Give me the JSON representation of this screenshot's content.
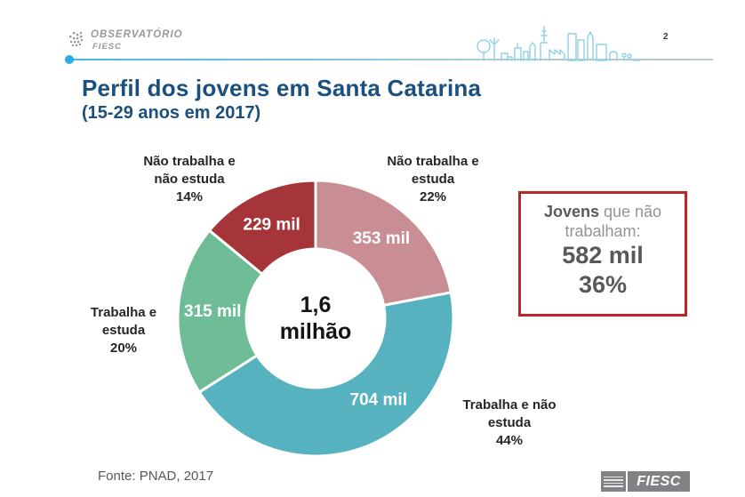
{
  "header": {
    "logo": {
      "line1": "OBSERVATÓRIO",
      "line2": "FIESC"
    },
    "page_number": "2"
  },
  "title": {
    "line1": "Perfil dos jovens em Santa Catarina",
    "line2": "(15-29 anos em 2017)"
  },
  "chart_data": {
    "type": "pie",
    "subtype": "donut",
    "title": "Perfil dos jovens em Santa Catarina (15-29 anos em 2017)",
    "center_label_lines": [
      "1,6",
      "milhão"
    ],
    "unit": "mil",
    "direction": "clockwise",
    "start_angle_deg": 0,
    "slices": [
      {
        "label": "Não trabalha e estuda",
        "label_lines": [
          "Não trabalha e",
          "estuda",
          "22%"
        ],
        "percent": 22,
        "value": 353,
        "value_label": "353 mil",
        "color": "#c98e93"
      },
      {
        "label": "Trabalha e não estuda",
        "label_lines": [
          "Trabalha e não",
          "estuda",
          "44%"
        ],
        "percent": 44,
        "value": 704,
        "value_label": "704 mil",
        "color": "#57b2c0"
      },
      {
        "label": "Trabalha e estuda",
        "label_lines": [
          "Trabalha e",
          "estuda",
          "20%"
        ],
        "percent": 20,
        "value": 315,
        "value_label": "315 mil",
        "color": "#6fbd96"
      },
      {
        "label": "Não trabalha e não estuda",
        "label_lines": [
          "Não trabalha e",
          "não estuda",
          "14%"
        ],
        "percent": 14,
        "value": 229,
        "value_label": "229 mil",
        "color": "#a63539"
      }
    ]
  },
  "callout": {
    "lead_bold": "Jovens",
    "lead_rest": " que não",
    "line2": "trabalham:",
    "value": "582 mil",
    "percent": "36%",
    "border_color": "#bb2429"
  },
  "footer": {
    "source": "Fonte: PNAD, 2017",
    "brand": "FIESC"
  }
}
